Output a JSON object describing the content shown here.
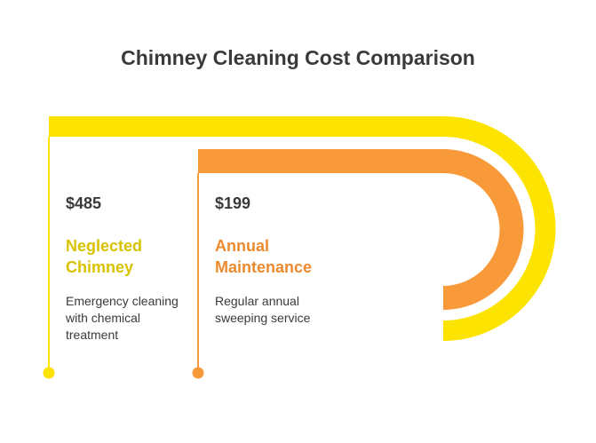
{
  "title": "Chimney Cleaning Cost Comparison",
  "colors": {
    "neglected": "#FDE400",
    "neglected_text": "#D9C200",
    "annual": "#F99A3A",
    "annual_text": "#EC8A2E",
    "text": "#3a3a3a"
  },
  "items": [
    {
      "price": "$485",
      "label": "Neglected\nChimney",
      "description": "Emergency cleaning\nwith chemical\ntreatment"
    },
    {
      "price": "$199",
      "label": "Annual\nMaintenance",
      "description": "Regular annual\nsweeping service"
    }
  ]
}
